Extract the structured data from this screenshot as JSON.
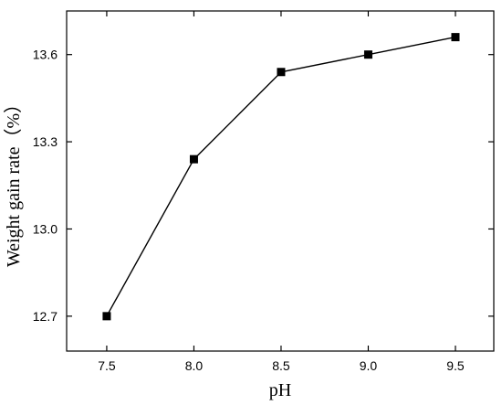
{
  "chart_data": {
    "type": "line",
    "title": "",
    "xlabel": "pH",
    "ylabel": "Weight gain rate（%）",
    "x_ticks": [
      "7.5",
      "8.0",
      "8.5",
      "9.0",
      "9.5"
    ],
    "y_ticks": [
      "12.7",
      "13.0",
      "13.3",
      "13.6"
    ],
    "xlim": [
      7.27,
      9.72
    ],
    "ylim": [
      12.58,
      13.75
    ],
    "grid": false,
    "legend": "none",
    "series": [
      {
        "x": [
          7.5,
          8.0,
          8.5,
          9.0,
          9.5
        ],
        "y": [
          12.7,
          13.24,
          13.54,
          13.6,
          13.66
        ],
        "marker": "square",
        "color": "#000000"
      }
    ]
  }
}
